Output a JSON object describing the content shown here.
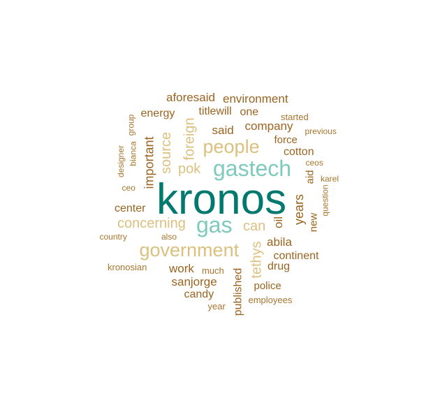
{
  "chart_data": {
    "type": "wordcloud",
    "colors": {
      "tier1": "#01796F",
      "tier2": "#7ECBBE",
      "tier3": "#DCC07F",
      "tier4": "#9A6420",
      "tier5": "#A8752E"
    },
    "words": [
      {
        "text": "kronos",
        "tier": 1,
        "rotated": false
      },
      {
        "text": "gastech",
        "tier": 2,
        "rotated": false
      },
      {
        "text": "gas",
        "tier": 2,
        "rotated": false
      },
      {
        "text": "government",
        "tier": 3,
        "rotated": false
      },
      {
        "text": "people",
        "tier": 3,
        "rotated": false
      },
      {
        "text": "concerning",
        "tier": 3,
        "rotated": false
      },
      {
        "text": "can",
        "tier": 3,
        "rotated": false
      },
      {
        "text": "pok",
        "tier": 3,
        "rotated": false
      },
      {
        "text": "source",
        "tier": 3,
        "rotated": true
      },
      {
        "text": "foreign",
        "tier": 3,
        "rotated": true
      },
      {
        "text": "tethys",
        "tier": 3,
        "rotated": true
      },
      {
        "text": "important",
        "tier": 4,
        "rotated": true
      },
      {
        "text": "said",
        "tier": 4,
        "rotated": false
      },
      {
        "text": "company",
        "tier": 4,
        "rotated": false
      },
      {
        "text": "environment",
        "tier": 4,
        "rotated": false
      },
      {
        "text": "aforesaid",
        "tier": 4,
        "rotated": false
      },
      {
        "text": "energy",
        "tier": 4,
        "rotated": false
      },
      {
        "text": "titlewill",
        "tier": 4,
        "rotated": false
      },
      {
        "text": "one",
        "tier": 4,
        "rotated": false
      },
      {
        "text": "force",
        "tier": 4,
        "rotated": false
      },
      {
        "text": "cotton",
        "tier": 4,
        "rotated": false
      },
      {
        "text": "center",
        "tier": 4,
        "rotated": false
      },
      {
        "text": "years",
        "tier": 4,
        "rotated": true
      },
      {
        "text": "oil",
        "tier": 4,
        "rotated": true
      },
      {
        "text": "aid",
        "tier": 4,
        "rotated": true
      },
      {
        "text": "new",
        "tier": 4,
        "rotated": true
      },
      {
        "text": "abila",
        "tier": 4,
        "rotated": false
      },
      {
        "text": "continent",
        "tier": 4,
        "rotated": false
      },
      {
        "text": "drug",
        "tier": 4,
        "rotated": false
      },
      {
        "text": "work",
        "tier": 4,
        "rotated": false
      },
      {
        "text": "sanjorge",
        "tier": 4,
        "rotated": false
      },
      {
        "text": "police",
        "tier": 4,
        "rotated": false
      },
      {
        "text": "candy",
        "tier": 4,
        "rotated": false
      },
      {
        "text": "published",
        "tier": 4,
        "rotated": true
      },
      {
        "text": "started",
        "tier": 5,
        "rotated": false
      },
      {
        "text": "previous",
        "tier": 5,
        "rotated": false
      },
      {
        "text": "ceos",
        "tier": 5,
        "rotated": false
      },
      {
        "text": "karel",
        "tier": 5,
        "rotated": false
      },
      {
        "text": "question",
        "tier": 5,
        "rotated": true
      },
      {
        "text": "group",
        "tier": 5,
        "rotated": true
      },
      {
        "text": "bianca",
        "tier": 5,
        "rotated": true
      },
      {
        "text": "designer",
        "tier": 5,
        "rotated": true
      },
      {
        "text": "ceo",
        "tier": 5,
        "rotated": false
      },
      {
        "text": "country",
        "tier": 5,
        "rotated": false
      },
      {
        "text": "also",
        "tier": 5,
        "rotated": false
      },
      {
        "text": "kronosian",
        "tier": 5,
        "rotated": false
      },
      {
        "text": "much",
        "tier": 5,
        "rotated": false
      },
      {
        "text": "year",
        "tier": 5,
        "rotated": false
      },
      {
        "text": "employees",
        "tier": 5,
        "rotated": false
      }
    ]
  }
}
